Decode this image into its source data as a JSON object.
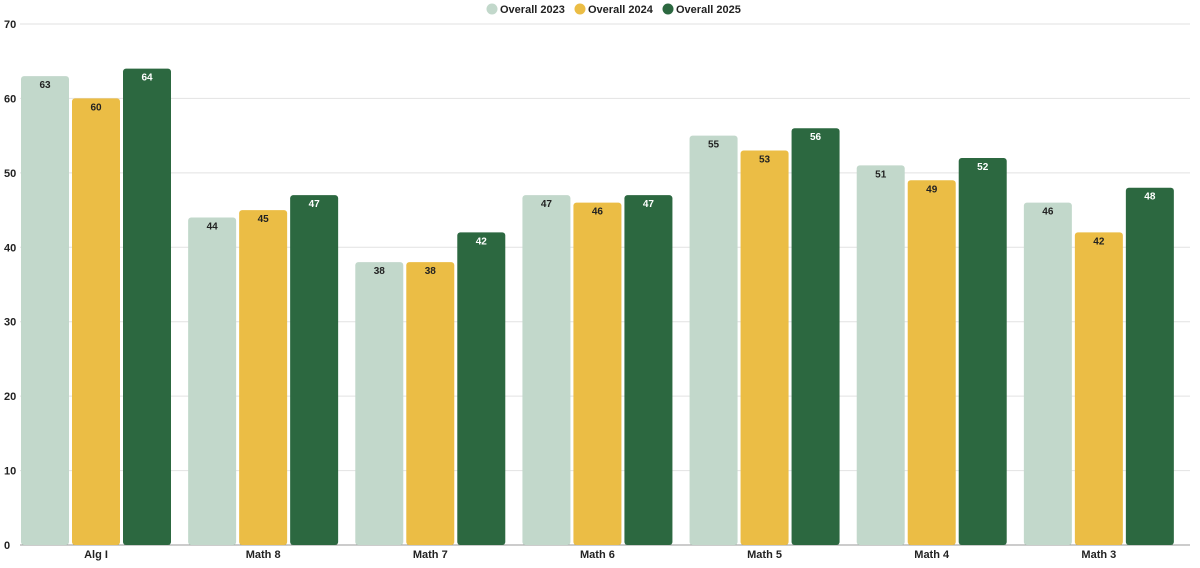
{
  "chart_data": {
    "type": "bar",
    "categories": [
      "Alg I",
      "Math 8",
      "Math 7",
      "Math 6",
      "Math 5",
      "Math 4",
      "Math 3"
    ],
    "series": [
      {
        "name": "Overall 2023",
        "color": "#c2d8cb",
        "label_color": "#222222",
        "values": [
          63,
          44,
          38,
          47,
          55,
          51,
          46
        ]
      },
      {
        "name": "Overall 2024",
        "color": "#ebbd45",
        "label_color": "#222222",
        "values": [
          60,
          45,
          38,
          46,
          53,
          49,
          42
        ]
      },
      {
        "name": "Overall 2025",
        "color": "#2c6840",
        "label_color": "#ffffff",
        "values": [
          64,
          47,
          42,
          47,
          56,
          52,
          48
        ]
      }
    ],
    "y_ticks": [
      0,
      10,
      20,
      30,
      40,
      50,
      60,
      70
    ],
    "ylim": [
      0,
      70
    ],
    "grid": true,
    "legend_position": "top-center",
    "title": "",
    "xlabel": "",
    "ylabel": ""
  }
}
